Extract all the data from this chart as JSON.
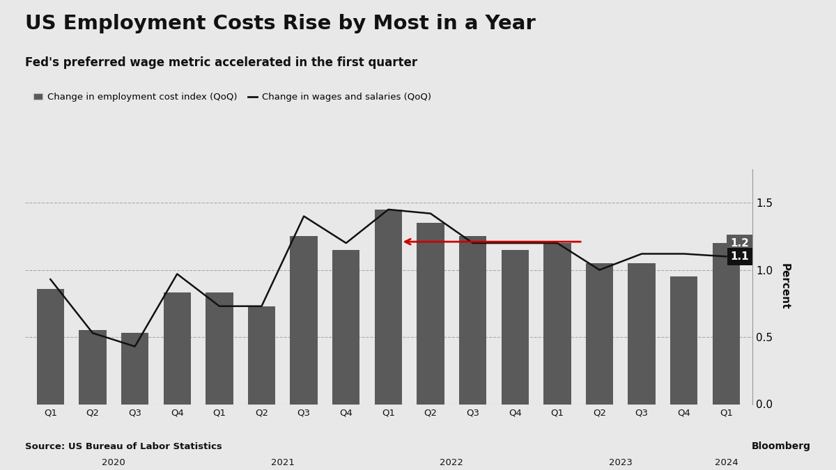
{
  "title": "US Employment Costs Rise by Most in a Year",
  "subtitle": "Fed's preferred wage metric accelerated in the first quarter",
  "source": "Source: US Bureau of Labor Statistics",
  "legend_bar": "Change in employment cost index (QoQ)",
  "legend_line": "Change in wages and salaries (QoQ)",
  "quarters": [
    "Q1",
    "Q2",
    "Q3",
    "Q4",
    "Q1",
    "Q2",
    "Q3",
    "Q4",
    "Q1",
    "Q2",
    "Q3",
    "Q4",
    "Q1",
    "Q2",
    "Q3",
    "Q4",
    "Q1"
  ],
  "years": [
    "2020",
    "2020",
    "2020",
    "2020",
    "2021",
    "2021",
    "2021",
    "2021",
    "2022",
    "2022",
    "2022",
    "2022",
    "2023",
    "2023",
    "2023",
    "2023",
    "2024"
  ],
  "bar_values": [
    0.86,
    0.55,
    0.53,
    0.83,
    0.83,
    0.73,
    1.25,
    1.15,
    1.45,
    1.35,
    1.25,
    1.15,
    1.2,
    1.05,
    1.05,
    0.95,
    1.2
  ],
  "line_values": [
    0.93,
    0.53,
    0.43,
    0.97,
    0.73,
    0.73,
    1.4,
    1.2,
    1.45,
    1.42,
    1.2,
    1.2,
    1.2,
    1.0,
    1.12,
    1.12,
    1.1
  ],
  "bar_color": "#5a5a5a",
  "line_color": "#111111",
  "background_color": "#e8e8e8",
  "ylim": [
    0.0,
    1.75
  ],
  "yticks": [
    0.0,
    0.5,
    1.0,
    1.5
  ],
  "ylabel": "Percent",
  "label_1_value": "1.2",
  "label_1_bg": "#5a5a5a",
  "label_2_value": "1.1",
  "label_2_bg": "#111111",
  "bloomberg_text": "Bloomberg",
  "arrow_color": "#cc0000"
}
